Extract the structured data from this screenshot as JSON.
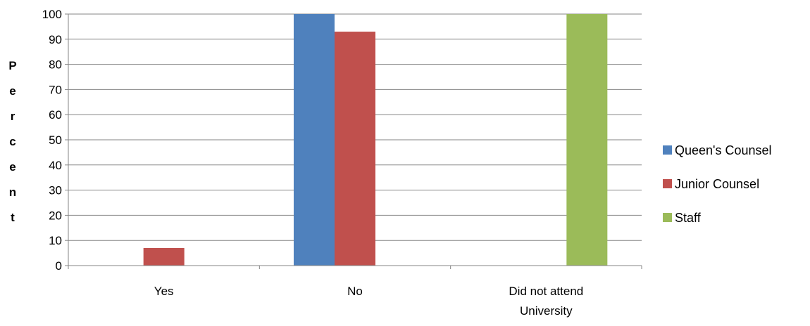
{
  "chart_data": {
    "type": "bar",
    "title": "",
    "xlabel": "",
    "ylabel": "Percent",
    "ylim": [
      0,
      100
    ],
    "yticks": [
      0,
      10,
      20,
      30,
      40,
      50,
      60,
      70,
      80,
      90,
      100
    ],
    "grid": true,
    "legend_position": "right",
    "categories": [
      [
        "Yes"
      ],
      [
        "No"
      ],
      [
        "Did not attend",
        "University"
      ]
    ],
    "series": [
      {
        "name": "Queen's Counsel",
        "color": "#4F81BD",
        "values": [
          0,
          100,
          0
        ]
      },
      {
        "name": "Junior Counsel",
        "color": "#C0504D",
        "values": [
          7,
          93,
          0
        ]
      },
      {
        "name": "Staff",
        "color": "#9BBB59",
        "values": [
          0,
          0,
          100
        ]
      }
    ]
  }
}
